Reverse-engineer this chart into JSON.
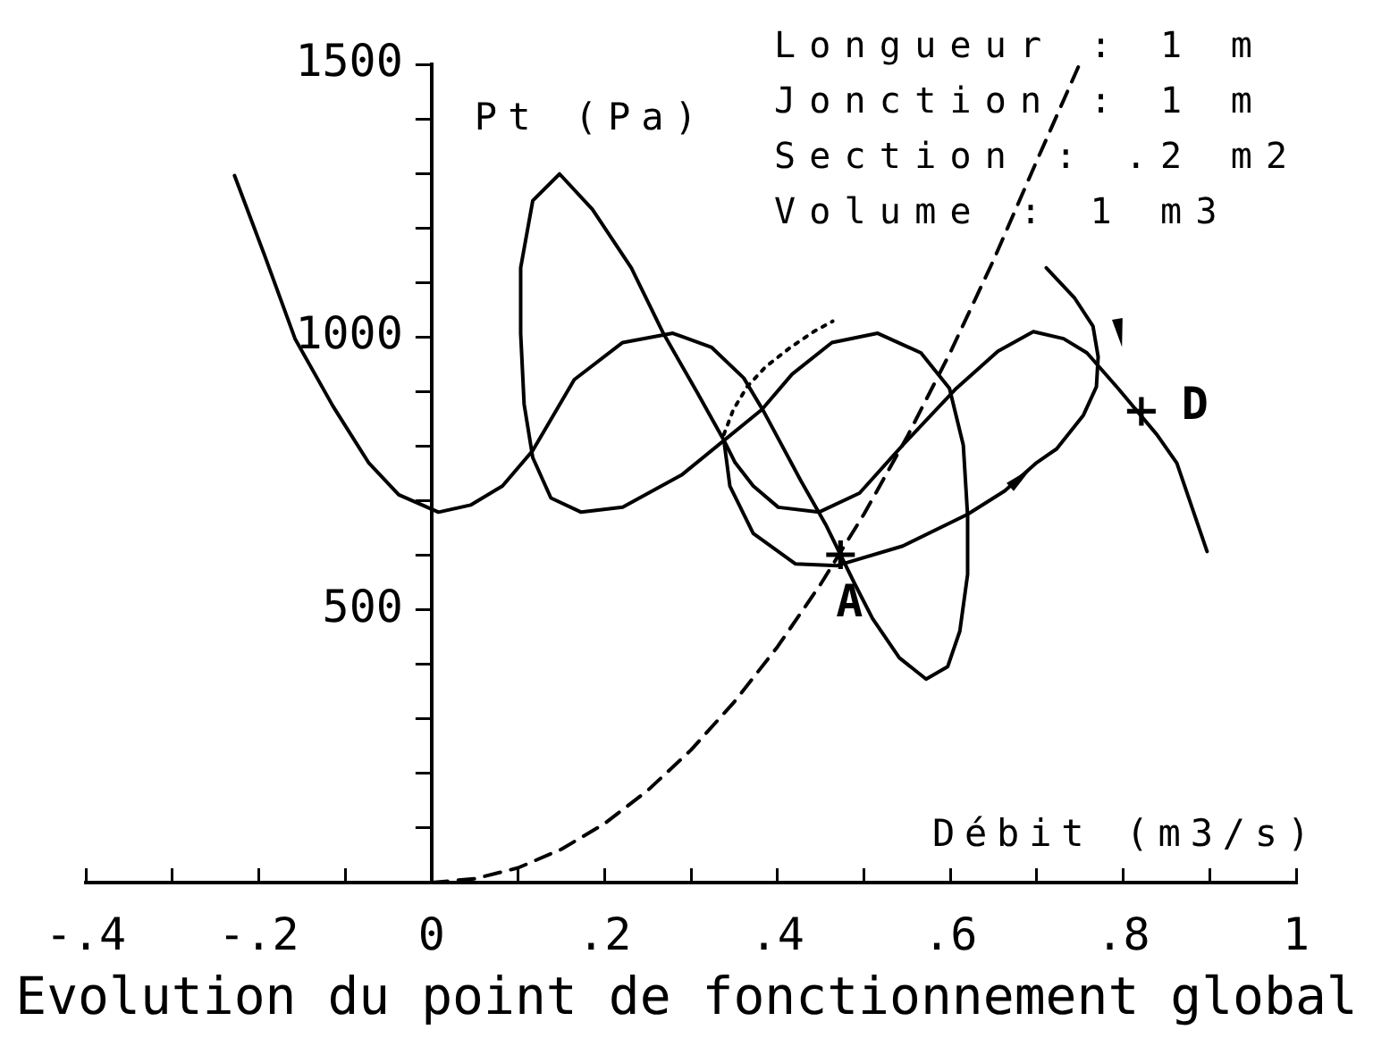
{
  "chart_data": {
    "type": "line",
    "title": "Evolution du point de fonctionnement global",
    "xlabel": "Débit (m3/s)",
    "ylabel": "Pt (Pa)",
    "xlim": [
      -0.4,
      1
    ],
    "xticks": [
      {
        "value": -0.4,
        "label": "-.4"
      },
      {
        "value": -0.3,
        "label": null
      },
      {
        "value": -0.2,
        "label": "-.2"
      },
      {
        "value": -0.1,
        "label": null
      },
      0,
      {
        "value": 0.1,
        "label": null
      },
      {
        "value": 0.2,
        "label": ".2"
      },
      {
        "value": 0.3,
        "label": null
      },
      {
        "value": 0.4,
        "label": ".4"
      },
      {
        "value": 0.5,
        "label": null
      },
      {
        "value": 0.6,
        "label": ".6"
      },
      {
        "value": 0.7,
        "label": null
      },
      {
        "value": 0.8,
        "label": ".8"
      },
      {
        "value": 0.9,
        "label": null
      },
      1
    ],
    "ylim": [
      0,
      1500
    ],
    "yticks": [
      {
        "value": 100,
        "label": null
      },
      {
        "value": 200,
        "label": null
      },
      {
        "value": 300,
        "label": null
      },
      {
        "value": 400,
        "label": null
      },
      500,
      {
        "value": 600,
        "label": null
      },
      {
        "value": 700,
        "label": null
      },
      {
        "value": 800,
        "label": null
      },
      {
        "value": 900,
        "label": null
      },
      1000,
      {
        "value": 1100,
        "label": null
      },
      {
        "value": 1200,
        "label": null
      },
      {
        "value": 1300,
        "label": null
      },
      {
        "value": 1400,
        "label": null
      },
      1500
    ],
    "annotations": [
      "Longueur : 1 m",
      "Jonction : 1 m",
      "Section : .2 m2",
      "Volume : 1 m3",
      {
        "text": "A",
        "x": 0.473,
        "y": 601
      },
      {
        "text": "D",
        "x": 0.821,
        "y": 864
      }
    ],
    "series": [
      {
        "line_style": "dashed",
        "color": "#000000",
        "x": [
          0,
          0.05,
          0.1,
          0.15,
          0.2,
          0.25,
          0.3,
          0.35,
          0.4,
          0.45,
          0.5,
          0.55,
          0.6,
          0.65,
          0.7,
          0.748
        ],
        "values": [
          0,
          7,
          27,
          61,
          108,
          169,
          243,
          331,
          432,
          547,
          675,
          817,
          972,
          1141,
          1323,
          1495
        ]
      },
      {
        "color": "#000000",
        "x": [
          0.897,
          0.862,
          0.839,
          0.794,
          0.758,
          0.731,
          0.696,
          0.655,
          0.607,
          0.545,
          0.495,
          0.448,
          0.401,
          0.372,
          0.351,
          0.339,
          0.307,
          0.268,
          0.231,
          0.186,
          0.148,
          0.117,
          0.103,
          0.103,
          0.107,
          0.117,
          0.138,
          0.173,
          0.221,
          0.289,
          0.334,
          0.382,
          0.417,
          0.463,
          0.516,
          0.566,
          0.599,
          0.615,
          0.62,
          0.62,
          0.611,
          0.597,
          0.572,
          0.541,
          0.51,
          0.489,
          0.456,
          0.427,
          0.384,
          0.361,
          0.324,
          0.279,
          0.221,
          0.165,
          0.117,
          0.082,
          0.045,
          0.008,
          -0.038,
          -0.073,
          -0.114,
          -0.158,
          -0.193,
          -0.228
        ],
        "values": [
          607,
          769,
          821,
          906,
          971,
          997,
          1010,
          974,
          906,
          802,
          714,
          679,
          688,
          727,
          770,
          808,
          899,
          1007,
          1127,
          1234,
          1299,
          1250,
          1127,
          1007,
          877,
          779,
          705,
          679,
          688,
          747,
          805,
          867,
          932,
          990,
          1007,
          971,
          906,
          802,
          672,
          565,
          461,
          396,
          373,
          412,
          484,
          549,
          656,
          737,
          864,
          925,
          981,
          1007,
          990,
          922,
          792,
          727,
          692,
          679,
          711,
          770,
          873,
          997,
          1149,
          1296
        ]
      },
      {
        "color": "#000000",
        "x": [
          0.711,
          0.744,
          0.765,
          0.771,
          0.769,
          0.754,
          0.723,
          0.7,
          0.663,
          0.62,
          0.545,
          0.469,
          0.421,
          0.372,
          0.345,
          0.338
        ],
        "values": [
          1127,
          1071,
          1020,
          964,
          909,
          857,
          795,
          770,
          718,
          675,
          617,
          581,
          584,
          640,
          727,
          812
        ]
      },
      {
        "line_style": "dotted",
        "color": "#000000",
        "x": [
          0.338,
          0.349,
          0.365,
          0.386,
          0.415,
          0.442,
          0.464
        ],
        "values": [
          821,
          867,
          909,
          945,
          981,
          1010,
          1029
        ]
      },
      {
        "type": "scatter",
        "marker": "cross",
        "color": "#000000",
        "x": [
          0.473
        ],
        "values": [
          601
        ]
      },
      {
        "type": "scatter",
        "marker": "cross",
        "color": "#000000",
        "x": [
          0.821
        ],
        "values": [
          864
        ]
      }
    ]
  }
}
